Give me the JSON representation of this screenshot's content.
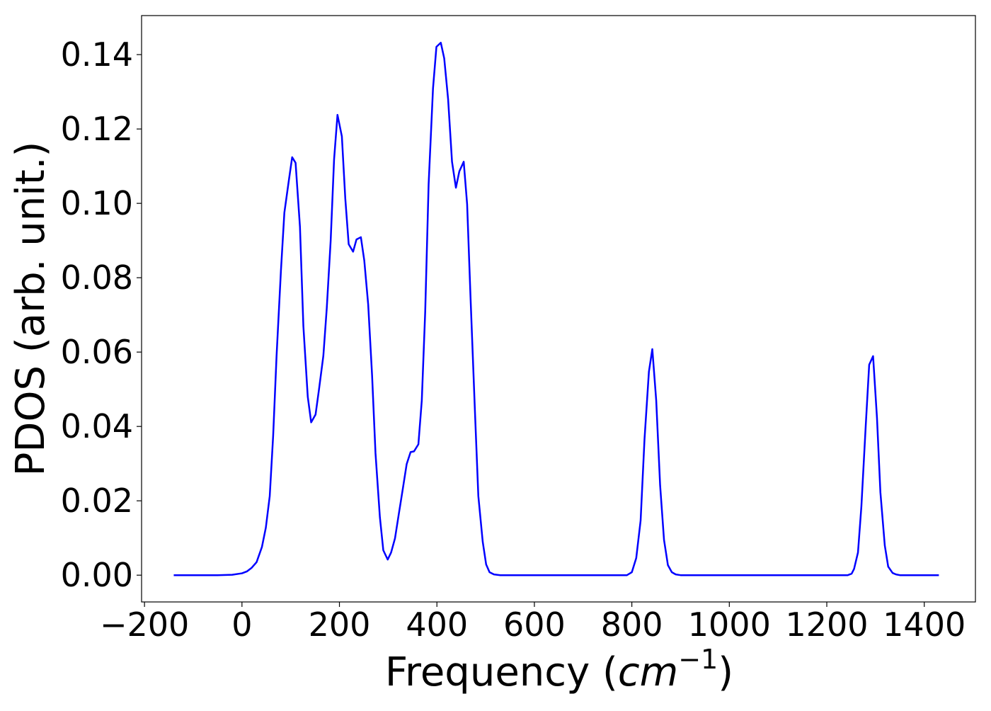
{
  "chart_data": {
    "type": "line",
    "xlabel": [
      "Frequency (",
      "cm",
      "−1",
      ")"
    ],
    "ylabel": "PDOS (arb. unit.)",
    "xlim": [
      -206,
      1505
    ],
    "ylim": [
      -0.0072,
      0.1505
    ],
    "xticks": [
      {
        "value": -200,
        "label": "−200"
      },
      0,
      200,
      400,
      600,
      800,
      1000,
      1200,
      1400
    ],
    "yticks": [
      {
        "value": 0,
        "label": "0.00"
      },
      {
        "value": 0.02,
        "label": "0.02"
      },
      {
        "value": 0.04,
        "label": "0.04"
      },
      {
        "value": 0.06,
        "label": "0.06"
      },
      {
        "value": 0.08,
        "label": "0.08"
      },
      {
        "value": 0.1,
        "label": "0.10"
      },
      {
        "value": 0.12,
        "label": "0.12"
      },
      {
        "value": 0.14,
        "label": "0.14"
      }
    ],
    "grid": false,
    "series": [
      {
        "color": "#0000ff",
        "x": [
          -140,
          -100,
          -50,
          -20,
          0,
          10,
          20,
          30,
          41,
          49,
          57,
          64,
          71,
          80,
          87,
          96,
          103,
          110,
          119,
          126,
          135,
          142,
          151,
          158,
          167,
          174,
          182,
          189,
          196,
          205,
          212,
          219,
          228,
          235,
          244,
          251,
          259,
          267,
          274,
          283,
          290,
          299,
          306,
          314,
          322,
          330,
          338,
          346,
          353,
          362,
          369,
          376,
          383,
          392,
          399,
          408,
          415,
          423,
          431,
          439,
          446,
          455,
          462,
          469,
          478,
          485,
          494,
          501,
          508,
          517,
          530,
          600,
          700,
          790,
          800,
          809,
          818,
          826,
          835,
          842,
          850,
          858,
          866,
          874,
          882,
          890,
          900,
          1000,
          1100,
          1200,
          1243,
          1251,
          1256,
          1264,
          1271,
          1280,
          1287,
          1295,
          1303,
          1310,
          1319,
          1326,
          1335,
          1342,
          1350,
          1430
        ],
        "values": [
          0,
          0,
          0,
          0.0001,
          0.0005,
          0.001,
          0.002,
          0.0035,
          0.0076,
          0.0128,
          0.0213,
          0.0375,
          0.059,
          0.082,
          0.0975,
          0.106,
          0.1124,
          0.1109,
          0.0937,
          0.067,
          0.048,
          0.0411,
          0.0432,
          0.0499,
          0.059,
          0.0718,
          0.0899,
          0.1118,
          0.1238,
          0.118,
          0.1013,
          0.089,
          0.087,
          0.0903,
          0.0909,
          0.0846,
          0.0728,
          0.0537,
          0.0328,
          0.0156,
          0.0067,
          0.0042,
          0.0061,
          0.0099,
          0.0166,
          0.0232,
          0.0299,
          0.0331,
          0.0333,
          0.0352,
          0.047,
          0.0709,
          0.1051,
          0.1309,
          0.1421,
          0.1432,
          0.139,
          0.128,
          0.1112,
          0.1042,
          0.1086,
          0.1112,
          0.0998,
          0.0747,
          0.0442,
          0.0213,
          0.009,
          0.0029,
          0.0008,
          0.0002,
          0,
          0,
          0,
          0,
          0.0008,
          0.0046,
          0.0147,
          0.0366,
          0.0547,
          0.0608,
          0.047,
          0.0242,
          0.0095,
          0.0027,
          0.0008,
          0.0002,
          0,
          0,
          0,
          0,
          0,
          0.0004,
          0.0017,
          0.0061,
          0.0185,
          0.0404,
          0.0566,
          0.0589,
          0.0423,
          0.0223,
          0.008,
          0.0023,
          0.0006,
          0.0002,
          0,
          0
        ]
      }
    ]
  }
}
